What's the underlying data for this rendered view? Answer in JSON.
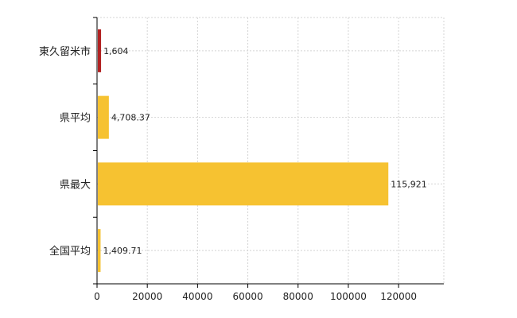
{
  "chart_data": {
    "type": "bar",
    "orientation": "horizontal",
    "categories": [
      "東久留米市",
      "県平均",
      "県最大",
      "全国平均"
    ],
    "values": [
      1604,
      4708.37,
      115921,
      1409.71
    ],
    "value_labels": [
      "1,604",
      "4,708.37",
      "115,921",
      "1,409.71"
    ],
    "colors": [
      "#b22222",
      "#f6c231",
      "#f6c231",
      "#f6c231"
    ],
    "xlim": [
      0,
      138000
    ],
    "xticks": [
      0,
      20000,
      40000,
      60000,
      80000,
      100000,
      120000
    ],
    "xtick_labels": [
      "0",
      "20000",
      "40000",
      "60000",
      "80000",
      "100000",
      "120000"
    ],
    "grid": true,
    "legend": "none",
    "title": "",
    "xlabel": "",
    "ylabel": ""
  }
}
